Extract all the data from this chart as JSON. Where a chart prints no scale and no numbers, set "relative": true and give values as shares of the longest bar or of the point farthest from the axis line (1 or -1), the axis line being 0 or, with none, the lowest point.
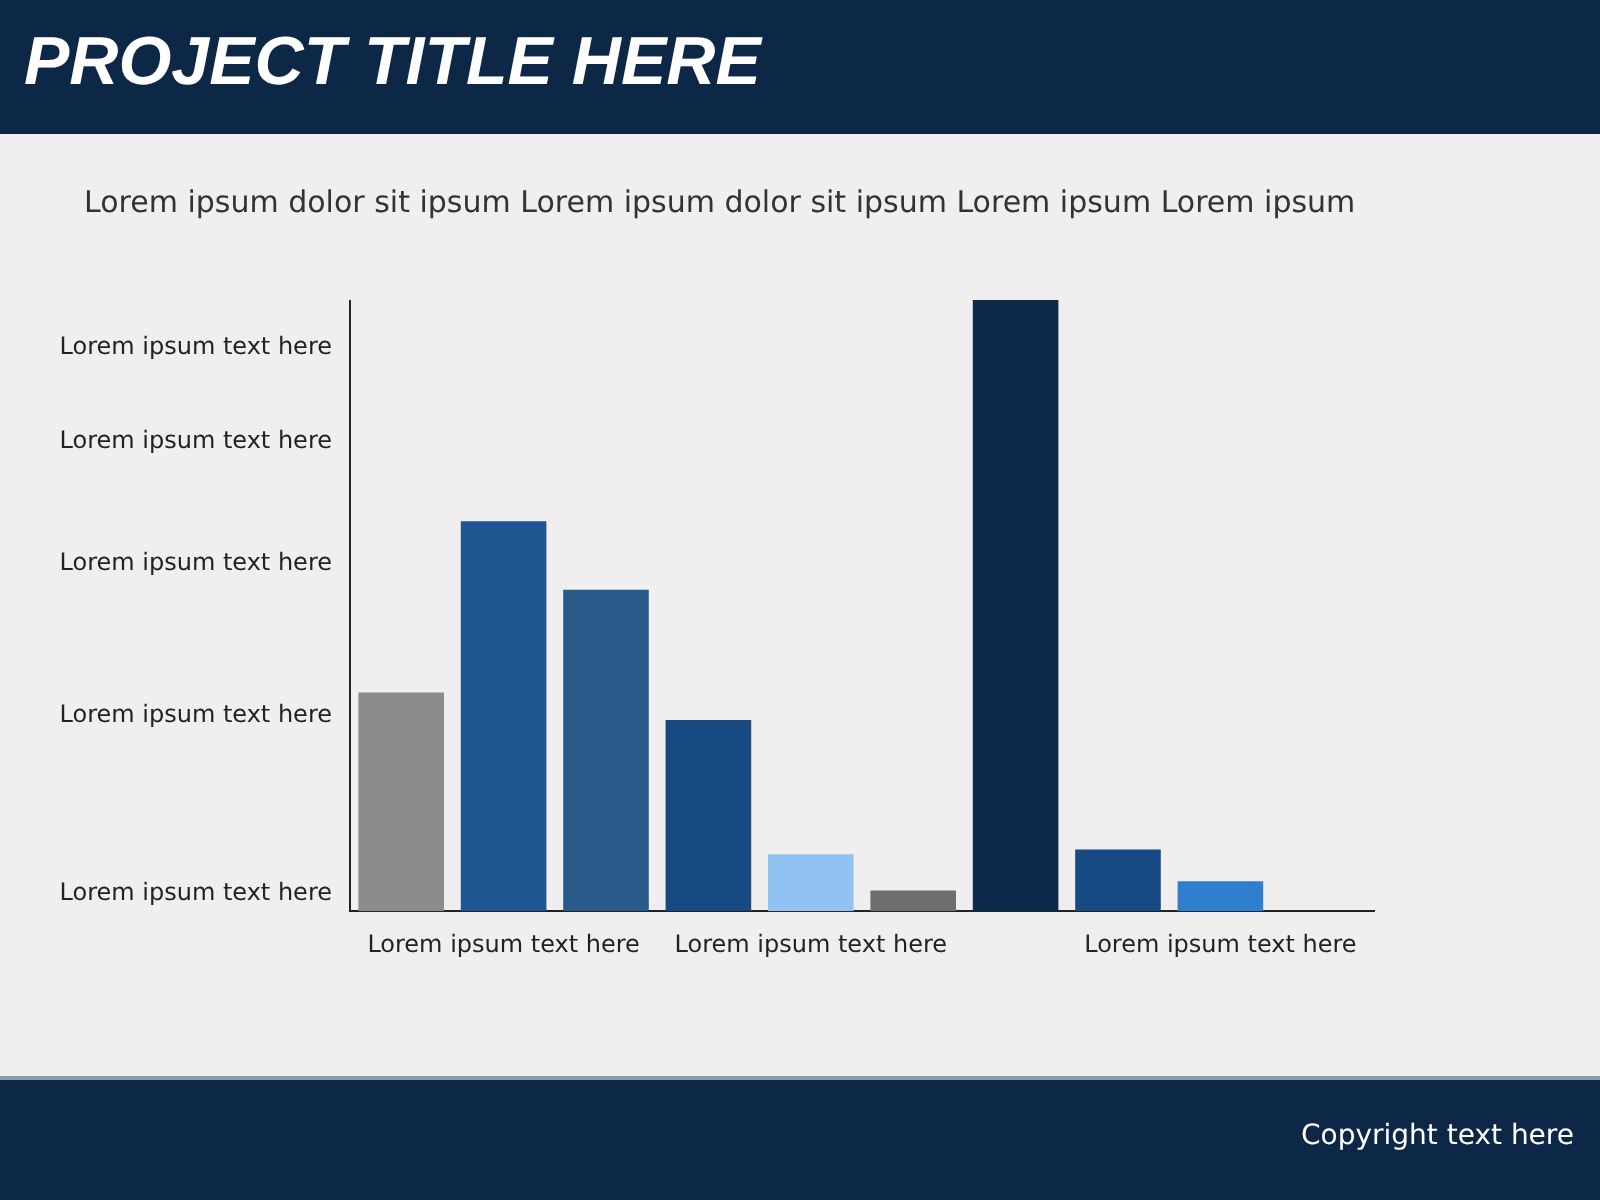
{
  "chart_data": {
    "type": "bar",
    "relative": true,
    "title": "PROJECT TITLE HERE",
    "subtitle": "Lorem ipsum dolor sit ipsum Lorem ipsum dolor sit ipsum Lorem ipsum Lorem ipsum",
    "categories": [
      null,
      "Lorem ipsum text here",
      null,
      null,
      "Lorem ipsum text here",
      null,
      null,
      null,
      "Lorem ipsum text here",
      null
    ],
    "values": [
      0.358,
      0.638,
      0.526,
      0.313,
      0.093,
      0.034,
      1,
      0.101,
      0.049,
      null
    ],
    "colors": [
      "#8c8c8c",
      "#1f5591",
      "#285a8a",
      "#174a80",
      "#90c3f2",
      "#6e6e6e",
      "#0e2a4a",
      "#164a82",
      "#2f7fce",
      "#2f7fce"
    ],
    "annotations": [
      "Lorem ipsum text here",
      "Lorem ipsum text here",
      "Lorem ipsum text here",
      "Lorem ipsum text here",
      "Lorem ipsum text here",
      "Copyright text here"
    ],
    "grid": false,
    "legend": false
  }
}
